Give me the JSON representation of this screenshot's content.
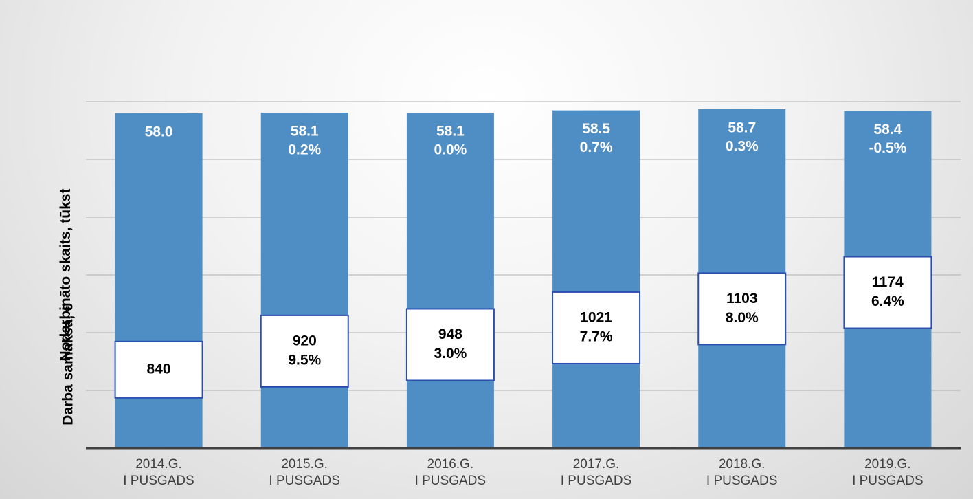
{
  "chart_data": {
    "type": "bar",
    "y_axis_labels": [
      "Nodarbināto skaits, tūkst",
      "Darba samaksa, €"
    ],
    "categories": [
      "2014.G.\nI PUSGADS",
      "2015.G.\nI PUSGADS",
      "2016.G.\nI PUSGADS",
      "2017.G.\nI PUSGADS",
      "2018.G.\nI PUSGADS",
      "2019.G.\nI PUSGADS"
    ],
    "series": [
      {
        "name": "Nodarbināto skaits",
        "color": "#4f8ec4",
        "values": [
          58.0,
          58.1,
          58.1,
          58.5,
          58.7,
          58.4
        ],
        "value_labels": [
          "58.0",
          "58.1",
          "58.1",
          "58.5",
          "58.7",
          "58.4"
        ],
        "change": [
          null,
          0.2,
          0.0,
          0.7,
          0.3,
          -0.5
        ],
        "change_labels": [
          null,
          "0.2%",
          "0.0%",
          "0.7%",
          "0.3%",
          "-0.5%"
        ]
      },
      {
        "name": "Darba samaksa",
        "color": "#ffffff",
        "axis": "y2",
        "values": [
          840,
          920,
          948,
          1021,
          1103,
          1174
        ],
        "change": [
          null,
          9.5,
          3.0,
          7.7,
          8.0,
          6.4
        ],
        "change_labels": [
          null,
          "9.5%",
          "3.0%",
          "7.7%",
          "8.0%",
          "6.4%"
        ]
      }
    ],
    "ylim": [
      0,
      60
    ],
    "y2lim": [
      500,
      2000
    ],
    "grid": true
  }
}
